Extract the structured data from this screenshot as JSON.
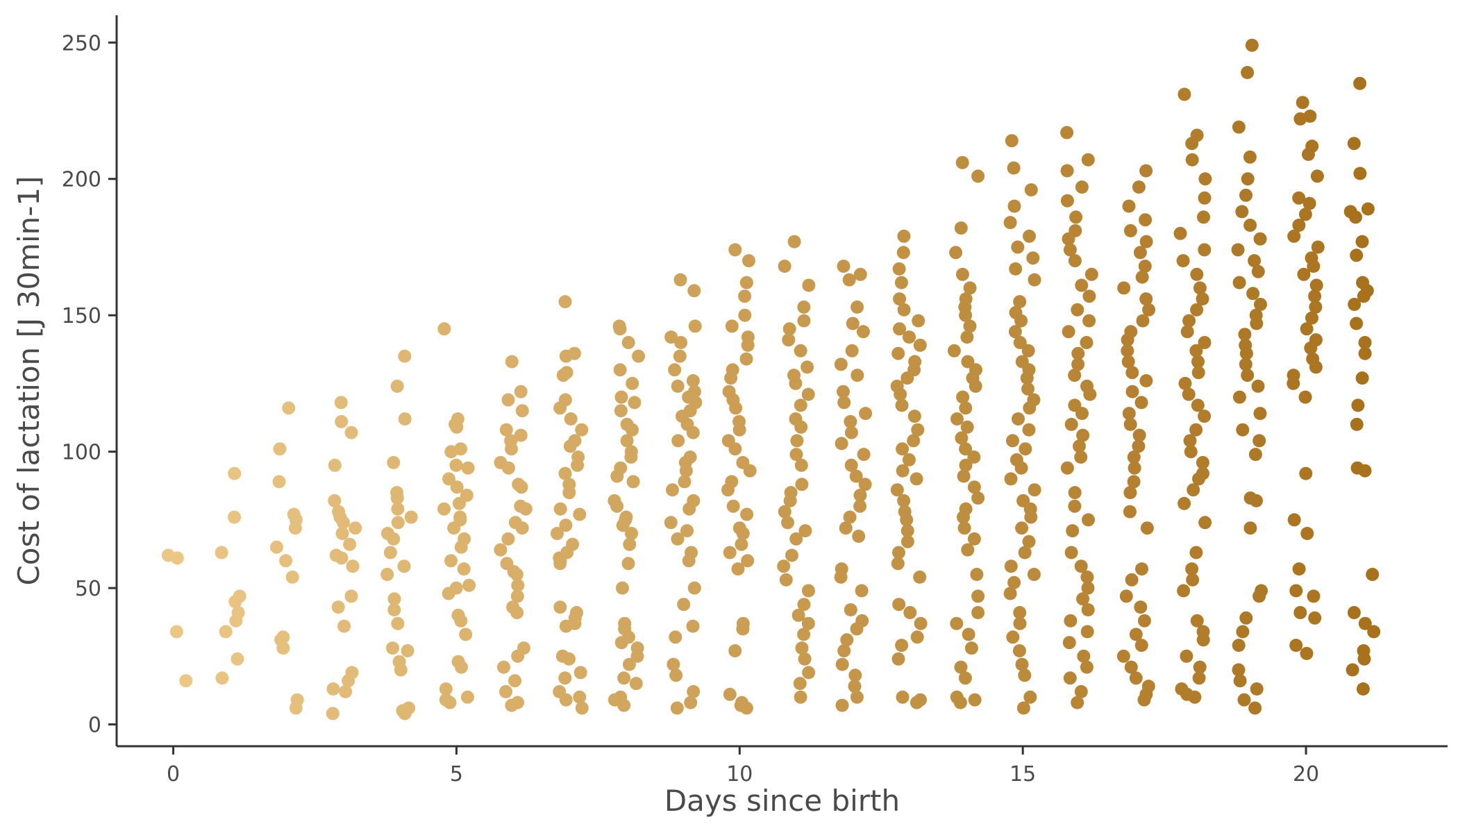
{
  "chart_data": {
    "type": "scatter",
    "title": "",
    "xlabel": "Days since birth",
    "ylabel": "Cost of lactation [J 30min-1]",
    "xlim": [
      -1,
      22.5
    ],
    "ylim": [
      -8,
      260
    ],
    "x_ticks": [
      "0",
      "5",
      "10",
      "15",
      "20"
    ],
    "y_ticks": [
      "0",
      "50",
      "100",
      "150",
      "200",
      "250"
    ],
    "grid": false,
    "legend": "none",
    "color_scale": {
      "low": "#EBC786",
      "high": "#A8711C",
      "mapped_to": "x"
    },
    "points_per_day": {
      "0": [
        61,
        62,
        34,
        16
      ],
      "1": [
        92,
        76,
        63,
        47,
        45,
        41,
        38,
        34,
        24,
        17
      ],
      "2": [
        116,
        101,
        89,
        77,
        75,
        72,
        65,
        60,
        54,
        32,
        31,
        28,
        9,
        6
      ],
      "3": [
        118,
        111,
        107,
        95,
        82,
        78,
        76,
        74,
        72,
        70,
        66,
        62,
        61,
        58,
        47,
        43,
        36,
        19,
        16,
        13,
        12,
        4
      ],
      "4": [
        135,
        124,
        112,
        96,
        85,
        83,
        79,
        76,
        74,
        70,
        68,
        63,
        58,
        55,
        46,
        42,
        37,
        28,
        27,
        23,
        20,
        6,
        5,
        4
      ],
      "5": [
        145,
        112,
        110,
        109,
        101,
        100,
        95,
        94,
        90,
        87,
        84,
        81,
        79,
        76,
        75,
        72,
        68,
        65,
        60,
        57,
        51,
        50,
        48,
        40,
        38,
        33,
        23,
        21,
        13,
        10,
        9,
        8
      ],
      "6": [
        133,
        122,
        119,
        115,
        108,
        106,
        104,
        101,
        96,
        94,
        88,
        87,
        80,
        79,
        74,
        72,
        68,
        64,
        59,
        56,
        55,
        51,
        47,
        43,
        41,
        28,
        25,
        21,
        16,
        12,
        8,
        7
      ],
      "7": [
        155,
        136,
        135,
        129,
        128,
        119,
        116,
        112,
        108,
        104,
        102,
        98,
        95,
        92,
        88,
        85,
        79,
        77,
        73,
        70,
        66,
        63,
        61,
        60,
        59,
        43,
        41,
        39,
        37,
        36,
        25,
        24,
        19,
        17,
        12,
        10,
        9,
        6
      ],
      "8": [
        146,
        145,
        140,
        135,
        130,
        125,
        120,
        118,
        115,
        110,
        108,
        104,
        100,
        98,
        94,
        91,
        89,
        82,
        80,
        76,
        75,
        73,
        70,
        66,
        59,
        50,
        37,
        35,
        32,
        30,
        28,
        25,
        22,
        17,
        15,
        10,
        9,
        7
      ],
      "9": [
        163,
        159,
        146,
        142,
        140,
        135,
        130,
        126,
        124,
        122,
        120,
        118,
        115,
        113,
        110,
        107,
        104,
        98,
        96,
        93,
        89,
        86,
        82,
        79,
        74,
        71,
        68,
        63,
        60,
        50,
        44,
        36,
        32,
        22,
        18,
        12,
        8,
        6
      ],
      "10": [
        174,
        170,
        162,
        157,
        150,
        146,
        142,
        139,
        134,
        130,
        127,
        122,
        119,
        116,
        111,
        108,
        104,
        101,
        96,
        93,
        89,
        86,
        80,
        77,
        72,
        70,
        66,
        63,
        60,
        57,
        37,
        35,
        27,
        11,
        8,
        7,
        6
      ],
      "11": [
        177,
        168,
        161,
        153,
        148,
        145,
        141,
        137,
        131,
        128,
        125,
        121,
        117,
        112,
        109,
        104,
        99,
        95,
        88,
        85,
        82,
        78,
        74,
        71,
        68,
        62,
        58,
        53,
        49,
        44,
        40,
        37,
        33,
        28,
        24,
        19,
        15,
        10
      ],
      "12": [
        168,
        165,
        163,
        153,
        147,
        144,
        137,
        132,
        128,
        122,
        118,
        114,
        111,
        107,
        103,
        99,
        95,
        91,
        88,
        84,
        80,
        76,
        72,
        69,
        57,
        54,
        49,
        42,
        38,
        35,
        31,
        27,
        22,
        18,
        14,
        10,
        7
      ],
      "13": [
        179,
        173,
        167,
        162,
        156,
        152,
        148,
        145,
        142,
        139,
        136,
        133,
        130,
        127,
        124,
        121,
        117,
        113,
        108,
        104,
        101,
        97,
        93,
        90,
        86,
        82,
        78,
        75,
        71,
        67,
        63,
        59,
        54,
        44,
        41,
        37,
        32,
        29,
        24,
        10,
        9,
        8
      ],
      "14": [
        206,
        201,
        182,
        173,
        165,
        160,
        156,
        153,
        150,
        146,
        142,
        137,
        133,
        130,
        127,
        124,
        120,
        116,
        112,
        109,
        105,
        101,
        98,
        95,
        91,
        87,
        83,
        79,
        76,
        72,
        68,
        64,
        55,
        47,
        41,
        37,
        33,
        28,
        21,
        17,
        10,
        9,
        8
      ],
      "15": [
        214,
        204,
        196,
        190,
        184,
        179,
        175,
        171,
        167,
        163,
        155,
        151,
        148,
        144,
        140,
        137,
        133,
        130,
        127,
        123,
        119,
        116,
        112,
        108,
        104,
        101,
        97,
        94,
        90,
        86,
        82,
        79,
        76,
        72,
        67,
        63,
        58,
        55,
        52,
        48,
        41,
        37,
        32,
        27,
        22,
        18,
        10,
        6
      ],
      "16": [
        217,
        207,
        203,
        197,
        192,
        186,
        181,
        178,
        174,
        170,
        165,
        161,
        157,
        152,
        148,
        144,
        140,
        136,
        132,
        128,
        124,
        121,
        117,
        114,
        110,
        106,
        102,
        98,
        94,
        85,
        80,
        75,
        71,
        63,
        58,
        54,
        50,
        46,
        42,
        38,
        34,
        30,
        25,
        21,
        17,
        12,
        8
      ],
      "17": [
        203,
        197,
        190,
        185,
        181,
        177,
        173,
        168,
        164,
        160,
        156,
        152,
        148,
        144,
        141,
        137,
        133,
        129,
        126,
        122,
        118,
        114,
        110,
        106,
        102,
        98,
        94,
        89,
        85,
        78,
        72,
        57,
        53,
        47,
        43,
        38,
        33,
        29,
        25,
        21,
        17,
        14,
        11,
        9
      ],
      "18": [
        231,
        216,
        213,
        207,
        200,
        193,
        186,
        180,
        174,
        170,
        165,
        160,
        156,
        152,
        148,
        144,
        140,
        137,
        133,
        129,
        125,
        121,
        117,
        113,
        108,
        104,
        100,
        96,
        92,
        90,
        86,
        81,
        74,
        63,
        57,
        53,
        49,
        38,
        34,
        31,
        25,
        21,
        17,
        13,
        11,
        10
      ],
      "19": [
        249,
        239,
        219,
        208,
        200,
        194,
        188,
        183,
        178,
        174,
        170,
        166,
        162,
        158,
        154,
        150,
        147,
        143,
        139,
        136,
        132,
        128,
        124,
        120,
        114,
        108,
        104,
        99,
        83,
        82,
        72,
        49,
        47,
        39,
        34,
        29,
        20,
        16,
        13,
        9,
        6
      ],
      "20": [
        228,
        223,
        222,
        212,
        209,
        201,
        193,
        191,
        187,
        183,
        179,
        175,
        171,
        168,
        165,
        161,
        157,
        153,
        149,
        145,
        141,
        138,
        134,
        131,
        128,
        125,
        120,
        92,
        75,
        70,
        57,
        49,
        47,
        41,
        39,
        29,
        26
      ],
      "21": [
        235,
        213,
        202,
        189,
        188,
        186,
        177,
        172,
        162,
        159,
        157,
        154,
        147,
        140,
        136,
        127,
        117,
        110,
        94,
        93,
        55,
        41,
        37,
        34,
        27,
        24,
        20,
        13
      ]
    }
  }
}
